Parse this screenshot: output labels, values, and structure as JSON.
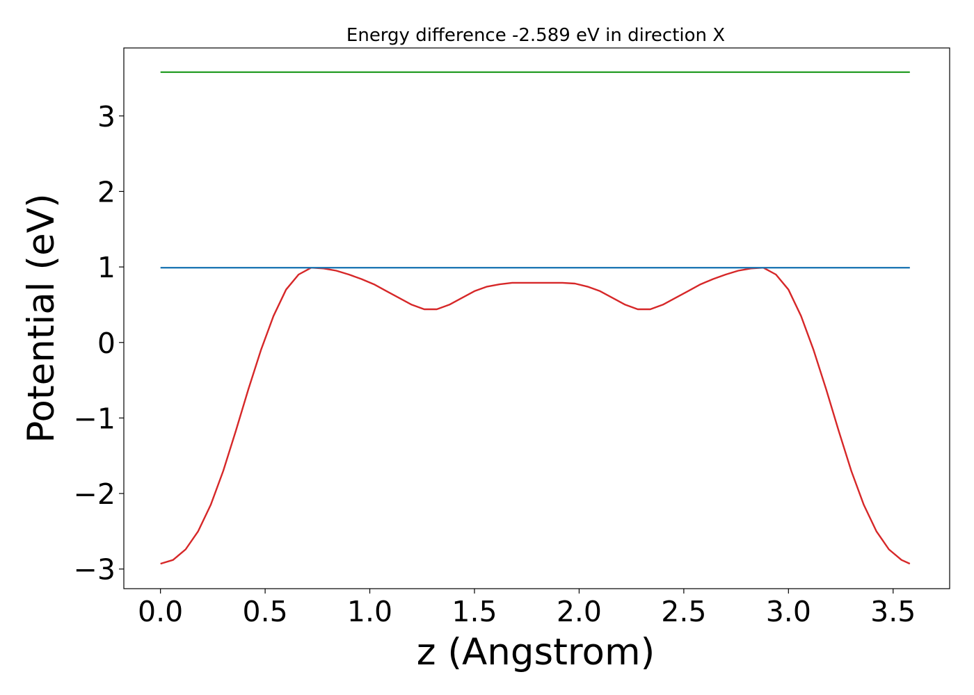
{
  "chart_data": {
    "type": "line",
    "title": "Energy difference -2.589 eV in direction X",
    "xlabel": "z (Angstrom)",
    "ylabel": "Potential (eV)",
    "xlim": [
      -0.175,
      3.77
    ],
    "ylim": [
      -3.26,
      3.9
    ],
    "grid": false,
    "x_ticks": [
      {
        "value": 0.0,
        "label": "0.0"
      },
      {
        "value": 0.5,
        "label": "0.5"
      },
      {
        "value": 1.0,
        "label": "1.0"
      },
      {
        "value": 1.5,
        "label": "1.5"
      },
      {
        "value": 2.0,
        "label": "2.0"
      },
      {
        "value": 2.5,
        "label": "2.5"
      },
      {
        "value": 3.0,
        "label": "3.0"
      },
      {
        "value": 3.5,
        "label": "3.5"
      }
    ],
    "y_ticks": [
      {
        "value": -3,
        "label": "−3"
      },
      {
        "value": -2,
        "label": "−2"
      },
      {
        "value": -1,
        "label": "−1"
      },
      {
        "value": 0,
        "label": "0"
      },
      {
        "value": 1,
        "label": "1"
      },
      {
        "value": 2,
        "label": "2"
      },
      {
        "value": 3,
        "label": "3"
      }
    ],
    "series": [
      {
        "color": "#d62728",
        "x": [
          0.0,
          0.06,
          0.12,
          0.18,
          0.24,
          0.3,
          0.36,
          0.42,
          0.48,
          0.54,
          0.6,
          0.66,
          0.72,
          0.78,
          0.84,
          0.9,
          0.96,
          1.02,
          1.08,
          1.14,
          1.2,
          1.26,
          1.32,
          1.38,
          1.44,
          1.5,
          1.56,
          1.62,
          1.68,
          1.74,
          1.8,
          1.86,
          1.92,
          1.98,
          2.04,
          2.1,
          2.16,
          2.22,
          2.28,
          2.34,
          2.4,
          2.46,
          2.52,
          2.58,
          2.64,
          2.7,
          2.76,
          2.82,
          2.88,
          2.94,
          3.0,
          3.06,
          3.12,
          3.18,
          3.24,
          3.3,
          3.36,
          3.42,
          3.48,
          3.54,
          3.58
        ],
        "y": [
          -2.93,
          -2.88,
          -2.74,
          -2.5,
          -2.15,
          -1.7,
          -1.17,
          -0.62,
          -0.1,
          0.35,
          0.7,
          0.9,
          0.99,
          0.98,
          0.95,
          0.9,
          0.84,
          0.77,
          0.68,
          0.59,
          0.5,
          0.44,
          0.44,
          0.5,
          0.59,
          0.68,
          0.74,
          0.77,
          0.79,
          0.79,
          0.79,
          0.79,
          0.79,
          0.78,
          0.74,
          0.68,
          0.59,
          0.5,
          0.44,
          0.44,
          0.5,
          0.59,
          0.68,
          0.77,
          0.84,
          0.9,
          0.95,
          0.98,
          0.99,
          0.9,
          0.7,
          0.35,
          -0.1,
          -0.62,
          -1.17,
          -1.7,
          -2.15,
          -2.5,
          -2.74,
          -2.88,
          -2.93
        ]
      },
      {
        "color": "#1f77b4",
        "x": [
          0.0,
          3.58
        ],
        "y": [
          0.99,
          0.99
        ]
      },
      {
        "color": "#2ca02c",
        "x": [
          0.0,
          3.58
        ],
        "y": [
          3.58,
          3.58
        ]
      }
    ]
  }
}
